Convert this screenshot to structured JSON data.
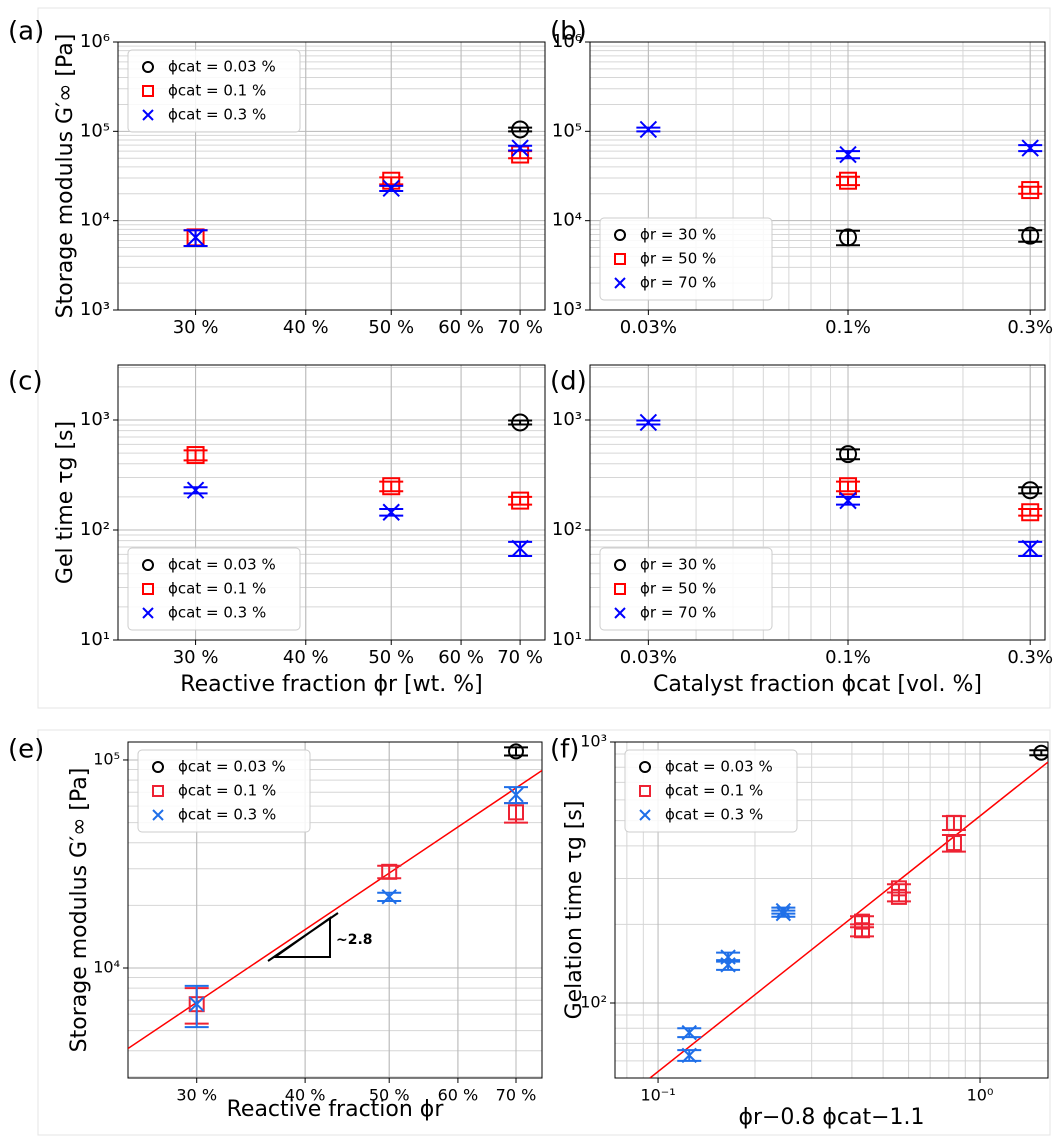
{
  "chart_data": [
    {
      "type": "scatter",
      "panel_label": "(a)",
      "ylabel": "Storage modulus G′∞ [Pa]",
      "xscale": "log",
      "yscale": "log",
      "xlim": [
        24.5,
        74.7
      ],
      "ylim": [
        1000,
        1000000
      ],
      "xticks": [
        {
          "value": 30,
          "label": "30 %"
        },
        {
          "value": 40,
          "label": "40 %"
        },
        {
          "value": 50,
          "label": "50 %"
        },
        {
          "value": 60,
          "label": "60 %"
        },
        {
          "value": 70,
          "label": "70 %"
        }
      ],
      "yticks": [
        {
          "value": 1000,
          "label": "10³"
        },
        {
          "value": 10000,
          "label": "10⁴"
        },
        {
          "value": 100000,
          "label": "10⁵"
        },
        {
          "value": 1000000,
          "label": "10⁶"
        }
      ],
      "grid": true,
      "legend": "upper left",
      "series": [
        {
          "name": "ϕcat = 0.03 %",
          "color": "#000000",
          "marker": "circle",
          "x": [
            70
          ],
          "values": [
            105000
          ],
          "errors": [
            5000
          ]
        },
        {
          "name": "ϕcat = 0.1 %",
          "color": "#ff0000",
          "marker": "square",
          "x": [
            30,
            50,
            70
          ],
          "values": [
            6500,
            28000,
            55000
          ],
          "errors": [
            1300,
            2500,
            5000
          ]
        },
        {
          "name": "ϕcat = 0.3 %",
          "color": "#0000ff",
          "marker": "x",
          "x": [
            30,
            50,
            70
          ],
          "values": [
            6500,
            23000,
            65000
          ],
          "errors": [
            1300,
            1500,
            4000
          ]
        }
      ]
    },
    {
      "type": "scatter",
      "panel_label": "(b)",
      "xscale": "log",
      "yscale": "log",
      "xlim": [
        0.0211,
        0.328
      ],
      "ylim": [
        1000,
        1000000
      ],
      "xticks": [
        {
          "value": 0.03,
          "label": "0.03%"
        },
        {
          "value": 0.1,
          "label": "0.1%"
        },
        {
          "value": 0.3,
          "label": "0.3%"
        }
      ],
      "yticks": [
        {
          "value": 1000,
          "label": "10³"
        },
        {
          "value": 10000,
          "label": "10⁴"
        },
        {
          "value": 100000,
          "label": "10⁵"
        },
        {
          "value": 1000000,
          "label": "10⁶"
        }
      ],
      "grid": true,
      "legend": "lower left",
      "series": [
        {
          "name": "ϕr = 30 %",
          "color": "#000000",
          "marker": "circle",
          "x": [
            0.1,
            0.3
          ],
          "values": [
            6500,
            6800
          ],
          "errors": [
            1200,
            1000
          ]
        },
        {
          "name": "ϕr = 50 %",
          "color": "#ff0000",
          "marker": "square",
          "x": [
            0.1,
            0.3
          ],
          "values": [
            28000,
            22000
          ],
          "errors": [
            3000,
            2000
          ]
        },
        {
          "name": "ϕr = 70 %",
          "color": "#0000ff",
          "marker": "x",
          "x": [
            0.03,
            0.1,
            0.3
          ],
          "values": [
            105000,
            55000,
            65000
          ],
          "errors": [
            5000,
            5000,
            5000
          ]
        }
      ]
    },
    {
      "type": "scatter",
      "panel_label": "(c)",
      "ylabel": "Gel time τg [s]",
      "xlabel": "Reactive fraction ϕr [wt. %]",
      "xscale": "log",
      "yscale": "log",
      "xlim": [
        24.5,
        74.7
      ],
      "ylim": [
        10,
        3162
      ],
      "xticks": [
        {
          "value": 30,
          "label": "30 %"
        },
        {
          "value": 40,
          "label": "40 %"
        },
        {
          "value": 50,
          "label": "50 %"
        },
        {
          "value": 60,
          "label": "60 %"
        },
        {
          "value": 70,
          "label": "70 %"
        }
      ],
      "yticks": [
        {
          "value": 10,
          "label": "10¹"
        },
        {
          "value": 100,
          "label": "10²"
        },
        {
          "value": 1000,
          "label": "10³"
        }
      ],
      "grid": true,
      "legend": "lower left",
      "series": [
        {
          "name": "ϕcat = 0.03 %",
          "color": "#000000",
          "marker": "circle",
          "x": [
            70
          ],
          "values": [
            950
          ],
          "errors": [
            40
          ]
        },
        {
          "name": "ϕcat = 0.1 %",
          "color": "#ff0000",
          "marker": "square",
          "x": [
            30,
            50,
            70
          ],
          "values": [
            480,
            250,
            185
          ],
          "errors": [
            50,
            25,
            15
          ]
        },
        {
          "name": "ϕcat = 0.3 %",
          "color": "#0000ff",
          "marker": "x",
          "x": [
            30,
            50,
            70
          ],
          "values": [
            230,
            145,
            68
          ],
          "errors": [
            15,
            10,
            10
          ]
        }
      ]
    },
    {
      "type": "scatter",
      "panel_label": "(d)",
      "xlabel": "Catalyst fraction ϕcat [vol. %]",
      "xscale": "log",
      "yscale": "log",
      "xlim": [
        0.0211,
        0.328
      ],
      "ylim": [
        10,
        3162
      ],
      "xticks": [
        {
          "value": 0.03,
          "label": "0.03%"
        },
        {
          "value": 0.1,
          "label": "0.1%"
        },
        {
          "value": 0.3,
          "label": "0.3%"
        }
      ],
      "yticks": [
        {
          "value": 10,
          "label": "10¹"
        },
        {
          "value": 100,
          "label": "10²"
        },
        {
          "value": 1000,
          "label": "10³"
        }
      ],
      "grid": true,
      "legend": "lower left",
      "series": [
        {
          "name": "ϕr = 30 %",
          "color": "#000000",
          "marker": "circle",
          "x": [
            0.1,
            0.3
          ],
          "values": [
            490,
            230
          ],
          "errors": [
            50,
            15
          ]
        },
        {
          "name": "ϕr = 50 %",
          "color": "#ff0000",
          "marker": "square",
          "x": [
            0.1,
            0.3
          ],
          "values": [
            250,
            145
          ],
          "errors": [
            25,
            10
          ]
        },
        {
          "name": "ϕr = 70 %",
          "color": "#0000ff",
          "marker": "x",
          "x": [
            0.03,
            0.1,
            0.3
          ],
          "values": [
            950,
            185,
            68
          ],
          "errors": [
            40,
            15,
            10
          ]
        }
      ]
    },
    {
      "type": "scatter",
      "panel_label": "(e)",
      "ylabel": "Storage modulus G′∞ [Pa]",
      "xlabel": "Reactive fraction ϕr",
      "xscale": "log",
      "yscale": "log",
      "xlim": [
        25,
        75
      ],
      "ylim": [
        2960,
        122000
      ],
      "xticks": [
        {
          "value": 30,
          "label": "30 %"
        },
        {
          "value": 40,
          "label": "40 %"
        },
        {
          "value": 50,
          "label": "50 %"
        },
        {
          "value": 60,
          "label": "60 %"
        },
        {
          "value": 70,
          "label": "70 %"
        }
      ],
      "yticks": [
        {
          "value": 10000,
          "label": "10⁴"
        },
        {
          "value": 100000,
          "label": "10⁵"
        }
      ],
      "grid": true,
      "legend": "upper left",
      "annotation": "~2.8",
      "fit": {
        "color": "#ff0000",
        "x": [
          25,
          75
        ],
        "values": [
          4100,
          89000
        ]
      },
      "series": [
        {
          "name": "ϕcat = 0.03 %",
          "color": "#000000",
          "marker": "circle",
          "x": [
            70
          ],
          "values": [
            110000
          ],
          "errors": [
            5000
          ]
        },
        {
          "name": "ϕcat = 0.1 %",
          "color": "#ee2233",
          "marker": "square",
          "x": [
            30,
            50,
            70
          ],
          "values": [
            6700,
            29000,
            56000
          ],
          "errors": [
            1300,
            2000,
            6000
          ]
        },
        {
          "name": "ϕcat = 0.3 %",
          "color": "#1f6fe8",
          "marker": "x",
          "x": [
            30,
            50,
            70
          ],
          "values": [
            6700,
            22000,
            68000
          ],
          "errors": [
            1500,
            1000,
            6000
          ]
        }
      ]
    },
    {
      "type": "scatter",
      "panel_label": "(f)",
      "ylabel": "Gelation time τg [s]",
      "xlabel": "ϕr−0.8 ϕcat−1.1",
      "xscale": "log",
      "yscale": "log",
      "xlim": [
        0.0735,
        1.626
      ],
      "ylim": [
        51.6,
        1000
      ],
      "xticks": [
        {
          "value": 0.1,
          "label": "10⁻¹"
        },
        {
          "value": 1,
          "label": "10⁰"
        }
      ],
      "yticks": [
        {
          "value": 100,
          "label": "10²"
        },
        {
          "value": 1000,
          "label": "10³"
        }
      ],
      "grid": true,
      "legend": "upper left",
      "fit": {
        "color": "#ff0000",
        "x": [
          0.0944,
          1.626
        ],
        "values": [
          51.6,
          838
        ]
      },
      "series": [
        {
          "name": "ϕcat = 0.03 %",
          "color": "#000000",
          "marker": "circle",
          "x": [
            1.55
          ],
          "values": [
            910
          ],
          "errors": [
            20
          ]
        },
        {
          "name": "ϕcat = 0.1 %",
          "color": "#ee2233",
          "marker": "square",
          "x": [
            0.43,
            0.43,
            0.56,
            0.56,
            0.83,
            0.83
          ],
          "values": [
            190,
            205,
            255,
            275,
            410,
            490
          ],
          "errors": [
            10,
            10,
            10,
            10,
            30,
            30
          ]
        },
        {
          "name": "ϕcat = 0.3 %",
          "color": "#1f6fe8",
          "marker": "x",
          "x": [
            0.125,
            0.125,
            0.165,
            0.165,
            0.245,
            0.245
          ],
          "values": [
            63,
            77,
            140,
            150,
            220,
            226
          ],
          "errors": [
            3,
            3,
            6,
            6,
            6,
            6
          ]
        }
      ]
    }
  ]
}
